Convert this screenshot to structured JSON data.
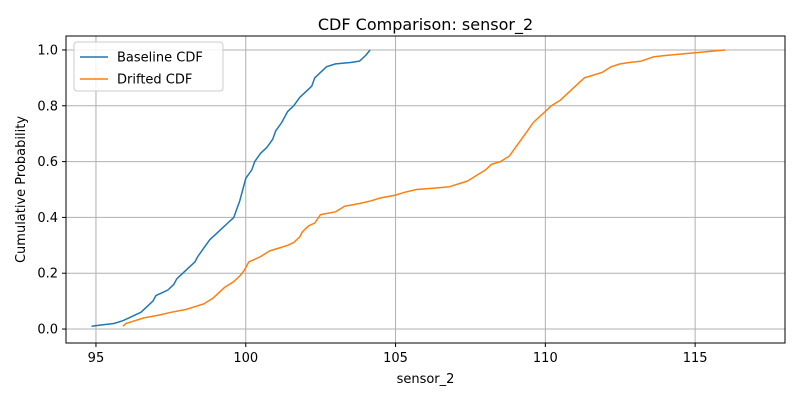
{
  "chart_data": {
    "type": "line",
    "title": "CDF Comparison: sensor_2",
    "xlabel": "sensor_2",
    "ylabel": "Cumulative Probability",
    "xlim": [
      94,
      118
    ],
    "ylim": [
      -0.05,
      1.05
    ],
    "xticks": [
      95,
      100,
      105,
      110,
      115
    ],
    "yticks": [
      0.0,
      0.2,
      0.4,
      0.6,
      0.8,
      1.0
    ],
    "ytick_labels": [
      "0.0",
      "0.2",
      "0.4",
      "0.6",
      "0.8",
      "1.0"
    ],
    "grid": true,
    "legend_position": "upper-left",
    "series": [
      {
        "name": "Baseline CDF",
        "color": "#1f77b4",
        "points": [
          [
            94.85,
            0.01
          ],
          [
            95.2,
            0.015
          ],
          [
            95.6,
            0.02
          ],
          [
            95.9,
            0.03
          ],
          [
            96.1,
            0.04
          ],
          [
            96.3,
            0.05
          ],
          [
            96.5,
            0.06
          ],
          [
            96.7,
            0.08
          ],
          [
            96.9,
            0.1
          ],
          [
            97.0,
            0.12
          ],
          [
            97.2,
            0.13
          ],
          [
            97.4,
            0.14
          ],
          [
            97.6,
            0.16
          ],
          [
            97.7,
            0.18
          ],
          [
            97.9,
            0.2
          ],
          [
            98.1,
            0.22
          ],
          [
            98.3,
            0.24
          ],
          [
            98.4,
            0.26
          ],
          [
            98.6,
            0.29
          ],
          [
            98.8,
            0.32
          ],
          [
            99.0,
            0.34
          ],
          [
            99.2,
            0.36
          ],
          [
            99.4,
            0.38
          ],
          [
            99.6,
            0.4
          ],
          [
            99.7,
            0.43
          ],
          [
            99.8,
            0.46
          ],
          [
            99.9,
            0.5
          ],
          [
            100.0,
            0.54
          ],
          [
            100.2,
            0.57
          ],
          [
            100.3,
            0.6
          ],
          [
            100.5,
            0.63
          ],
          [
            100.7,
            0.65
          ],
          [
            100.9,
            0.68
          ],
          [
            101.0,
            0.71
          ],
          [
            101.2,
            0.74
          ],
          [
            101.4,
            0.78
          ],
          [
            101.6,
            0.8
          ],
          [
            101.8,
            0.83
          ],
          [
            102.0,
            0.85
          ],
          [
            102.2,
            0.87
          ],
          [
            102.3,
            0.9
          ],
          [
            102.5,
            0.92
          ],
          [
            102.7,
            0.94
          ],
          [
            103.0,
            0.95
          ],
          [
            103.5,
            0.955
          ],
          [
            103.8,
            0.96
          ],
          [
            104.0,
            0.98
          ],
          [
            104.15,
            1.0
          ]
        ]
      },
      {
        "name": "Drifted CDF",
        "color": "#ff7f0e",
        "points": [
          [
            95.9,
            0.01
          ],
          [
            96.0,
            0.02
          ],
          [
            96.3,
            0.03
          ],
          [
            96.6,
            0.04
          ],
          [
            97.1,
            0.05
          ],
          [
            97.5,
            0.06
          ],
          [
            98.0,
            0.07
          ],
          [
            98.3,
            0.08
          ],
          [
            98.6,
            0.09
          ],
          [
            98.9,
            0.11
          ],
          [
            99.1,
            0.13
          ],
          [
            99.3,
            0.15
          ],
          [
            99.6,
            0.17
          ],
          [
            99.8,
            0.19
          ],
          [
            99.95,
            0.21
          ],
          [
            100.1,
            0.24
          ],
          [
            100.3,
            0.25
          ],
          [
            100.5,
            0.26
          ],
          [
            100.8,
            0.28
          ],
          [
            101.1,
            0.29
          ],
          [
            101.4,
            0.3
          ],
          [
            101.6,
            0.31
          ],
          [
            101.8,
            0.33
          ],
          [
            101.9,
            0.35
          ],
          [
            102.1,
            0.37
          ],
          [
            102.3,
            0.38
          ],
          [
            102.5,
            0.41
          ],
          [
            103.0,
            0.42
          ],
          [
            103.3,
            0.44
          ],
          [
            103.8,
            0.45
          ],
          [
            104.2,
            0.46
          ],
          [
            104.5,
            0.47
          ],
          [
            105.0,
            0.48
          ],
          [
            105.3,
            0.49
          ],
          [
            105.7,
            0.5
          ],
          [
            106.3,
            0.505
          ],
          [
            106.8,
            0.51
          ],
          [
            107.1,
            0.52
          ],
          [
            107.4,
            0.53
          ],
          [
            107.7,
            0.55
          ],
          [
            108.0,
            0.57
          ],
          [
            108.2,
            0.59
          ],
          [
            108.5,
            0.6
          ],
          [
            108.8,
            0.62
          ],
          [
            109.0,
            0.65
          ],
          [
            109.2,
            0.68
          ],
          [
            109.4,
            0.71
          ],
          [
            109.6,
            0.74
          ],
          [
            109.8,
            0.76
          ],
          [
            110.0,
            0.78
          ],
          [
            110.2,
            0.8
          ],
          [
            110.5,
            0.82
          ],
          [
            110.8,
            0.85
          ],
          [
            111.0,
            0.87
          ],
          [
            111.3,
            0.9
          ],
          [
            111.6,
            0.91
          ],
          [
            111.9,
            0.92
          ],
          [
            112.2,
            0.94
          ],
          [
            112.5,
            0.95
          ],
          [
            112.8,
            0.955
          ],
          [
            113.2,
            0.96
          ],
          [
            113.6,
            0.975
          ],
          [
            114.0,
            0.98
          ],
          [
            114.5,
            0.985
          ],
          [
            115.0,
            0.99
          ],
          [
            115.5,
            0.995
          ],
          [
            116.0,
            1.0
          ]
        ]
      }
    ]
  }
}
